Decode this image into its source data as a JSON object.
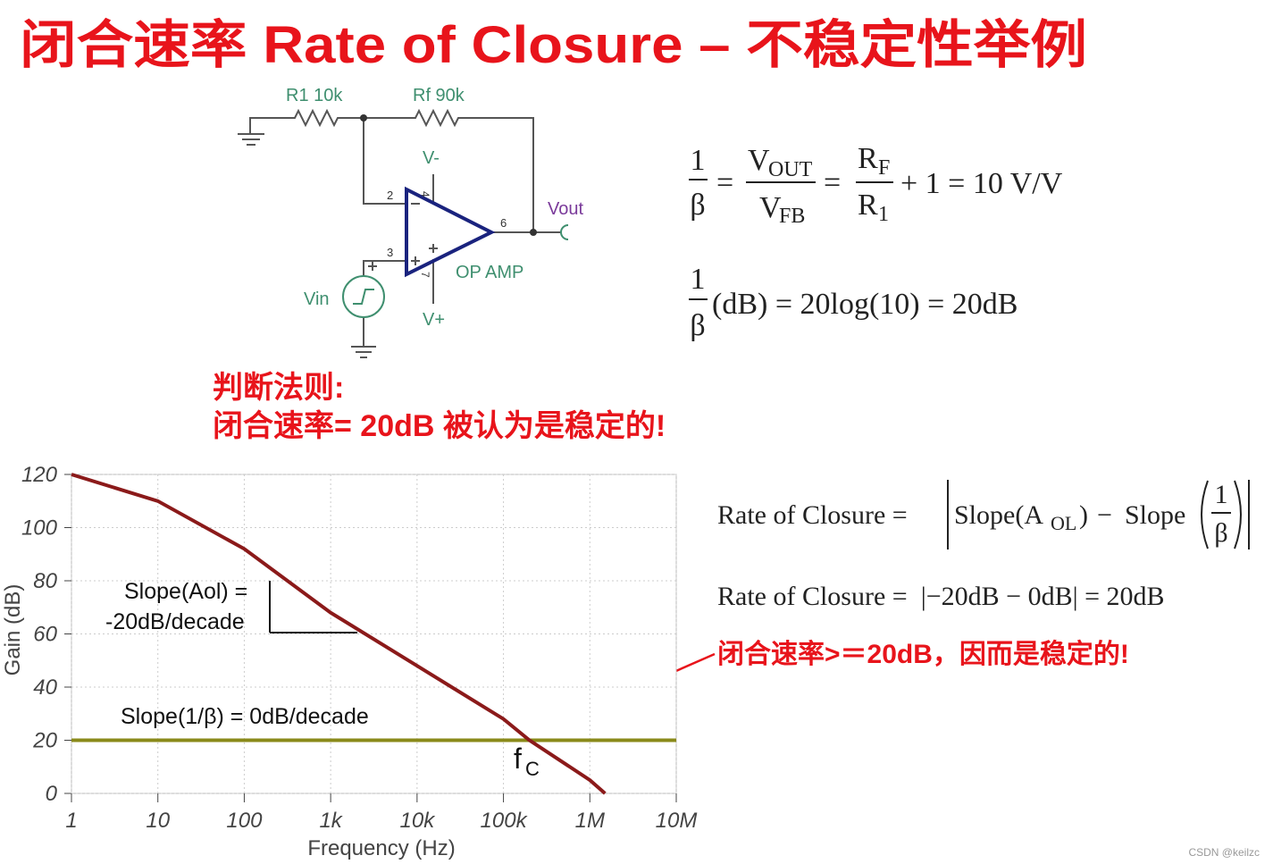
{
  "title": "闭合速率 Rate of Closure – 不稳定性举例",
  "circuit": {
    "r1": "R1 10k",
    "rf": "Rf 90k",
    "v_minus": "V-",
    "v_plus": "V+",
    "vout": "Vout",
    "vin": "Vin",
    "opamp": "OP AMP",
    "pin_2": "2",
    "pin_3": "3",
    "pin_4": "4",
    "pin_6": "6",
    "pin_7": "7"
  },
  "rule": {
    "heading": "判断法则:",
    "text": "闭合速率= 20dB 被认为是稳定的!"
  },
  "eq1": {
    "lhs_num": "1",
    "lhs_den": "β",
    "eq_a": "=",
    "vout": "V",
    "vout_sub": "OUT",
    "vfb": "V",
    "vfb_sub": "FB",
    "eq_b": "=",
    "rf": "R",
    "rf_sub": "F",
    "r1": "R",
    "r1_sub": "1",
    "rest": "+ 1 = 10 V/V"
  },
  "eq2": {
    "num": "1",
    "den": "β",
    "rest": "(dB) = 20log(10) = 20dB"
  },
  "eq3": {
    "lhs": "Rate of Closure =",
    "slope_a": "Slope(A",
    "slope_a_sub": "OL",
    "close": ")",
    "minus": "−",
    "slope_b": "Slope",
    "num": "1",
    "den": "β"
  },
  "eq4": "Rate of Closure =  |−20dB − 0dB| = 20dB",
  "conclusion": "闭合速率>＝20dB，因而是稳定的!",
  "watermark": "CSDN @keilzc",
  "chart_data": {
    "type": "line",
    "x_label": "Frequency (Hz)",
    "y_label": "Gain (dB)",
    "log_x": true,
    "grid": true,
    "xlim": [
      1,
      10000000
    ],
    "ylim": [
      0,
      120
    ],
    "xticks": [
      1,
      10,
      100,
      {
        "value": 1000,
        "label": "1k"
      },
      {
        "value": 10000,
        "label": "10k"
      },
      {
        "value": 100000,
        "label": "100k"
      },
      {
        "value": 1000000,
        "label": "1M"
      },
      {
        "value": 10000000,
        "label": "10M"
      }
    ],
    "yticks": [
      0,
      20,
      40,
      60,
      80,
      100,
      120
    ],
    "series": [
      {
        "name": "Slope(Aol)",
        "color": "#8b1a1a",
        "x": [
          1,
          10,
          100,
          1000,
          10000,
          100000,
          200000,
          1000000,
          1500000
        ],
        "values": [
          120,
          110,
          92,
          68,
          48,
          28,
          20,
          5,
          0
        ]
      },
      {
        "name": "Slope(1/β)",
        "color": "#8a8a1a",
        "x": [
          1,
          10000000
        ],
        "values": [
          20,
          20
        ]
      }
    ],
    "annotations": {
      "aol_1": "Slope(Aol) =",
      "aol_2": "-20dB/decade",
      "beta": "Slope(1/β) = 0dB/decade",
      "fc": "f",
      "fc_sub": "C"
    }
  }
}
